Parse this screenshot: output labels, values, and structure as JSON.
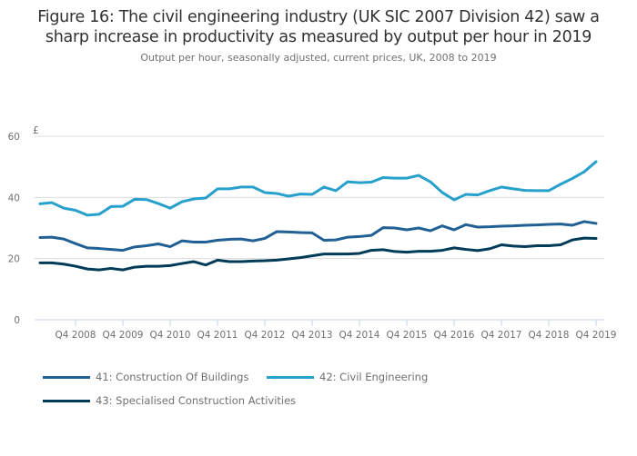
{
  "header": {
    "title_line1": "Figure 16: The civil engineering industry (UK SIC 2007 Division 42) saw a",
    "title_line2": "sharp increase in productivity as measured by output per hour in 2019",
    "subtitle": "Output per hour, seasonally adjusted, current prices, UK, 2008 to 2019"
  },
  "chart_data": {
    "type": "line",
    "title": "Figure 16: The civil engineering industry (UK SIC 2007 Division 42) saw a sharp increase in productivity as measured by output per hour in 2019",
    "subtitle": "Output per hour, seasonally adjusted, current prices, UK, 2008 to 2019",
    "ylabel": "£",
    "xlabel": "",
    "ylim": [
      0,
      60
    ],
    "yticks": [
      0,
      20,
      40,
      60
    ],
    "grid": true,
    "legend_position": "bottom",
    "x": [
      "Q1 2008",
      "Q2 2008",
      "Q3 2008",
      "Q4 2008",
      "Q1 2009",
      "Q2 2009",
      "Q3 2009",
      "Q4 2009",
      "Q1 2010",
      "Q2 2010",
      "Q3 2010",
      "Q4 2010",
      "Q1 2011",
      "Q2 2011",
      "Q3 2011",
      "Q4 2011",
      "Q1 2012",
      "Q2 2012",
      "Q3 2012",
      "Q4 2012",
      "Q1 2013",
      "Q2 2013",
      "Q3 2013",
      "Q4 2013",
      "Q1 2014",
      "Q2 2014",
      "Q3 2014",
      "Q4 2014",
      "Q1 2015",
      "Q2 2015",
      "Q3 2015",
      "Q4 2015",
      "Q1 2016",
      "Q2 2016",
      "Q3 2016",
      "Q4 2016",
      "Q1 2017",
      "Q2 2017",
      "Q3 2017",
      "Q4 2017",
      "Q1 2018",
      "Q2 2018",
      "Q3 2018",
      "Q4 2018",
      "Q1 2019",
      "Q2 2019",
      "Q3 2019",
      "Q4 2019"
    ],
    "xtick_labels": [
      "Q4 2008",
      "Q4 2009",
      "Q4 2010",
      "Q4 2011",
      "Q4 2012",
      "Q4 2013",
      "Q4 2014",
      "Q4 2015",
      "Q4 2016",
      "Q4 2017",
      "Q4 2018",
      "Q4 2019"
    ],
    "series": [
      {
        "name": "41: Construction Of Buildings",
        "color": "#206095",
        "values": [
          26.9,
          27.0,
          26.4,
          24.9,
          23.5,
          23.3,
          23.0,
          22.7,
          23.8,
          24.2,
          24.8,
          23.9,
          25.8,
          25.4,
          25.4,
          26.0,
          26.3,
          26.4,
          25.8,
          26.6,
          28.8,
          28.7,
          28.5,
          28.4,
          26.0,
          26.1,
          27.0,
          27.2,
          27.6,
          30.1,
          30.0,
          29.4,
          30.0,
          29.1,
          30.7,
          29.4,
          31.1,
          30.3,
          30.4,
          30.6,
          30.7,
          30.9,
          31.0,
          31.2,
          31.3,
          30.9,
          32.1,
          31.5
        ]
      },
      {
        "name": "42: Civil Engineering",
        "color": "#27a0cc",
        "values": [
          37.9,
          38.3,
          36.5,
          35.8,
          34.2,
          34.5,
          37.0,
          37.1,
          39.4,
          39.3,
          38.0,
          36.5,
          38.6,
          39.5,
          39.8,
          42.8,
          42.8,
          43.4,
          43.4,
          41.6,
          41.3,
          40.4,
          41.1,
          41.0,
          43.4,
          42.2,
          45.1,
          44.8,
          45.0,
          46.5,
          46.3,
          46.3,
          47.2,
          45.1,
          41.6,
          39.2,
          41.0,
          40.8,
          42.2,
          43.4,
          42.8,
          42.3,
          42.2,
          42.2,
          44.3,
          46.2,
          48.4,
          51.7
        ]
      },
      {
        "name": "43: Specialised Construction Activities",
        "color": "#003c57",
        "values": [
          18.6,
          18.6,
          18.2,
          17.5,
          16.6,
          16.3,
          16.8,
          16.3,
          17.2,
          17.5,
          17.5,
          17.7,
          18.4,
          19.0,
          17.9,
          19.5,
          19.0,
          19.0,
          19.2,
          19.3,
          19.5,
          19.9,
          20.3,
          20.9,
          21.5,
          21.5,
          21.5,
          21.7,
          22.7,
          22.9,
          22.3,
          22.1,
          22.4,
          22.4,
          22.7,
          23.5,
          23.0,
          22.6,
          23.2,
          24.5,
          24.1,
          23.9,
          24.2,
          24.2,
          24.5,
          26.1,
          26.7,
          26.6
        ]
      }
    ]
  }
}
